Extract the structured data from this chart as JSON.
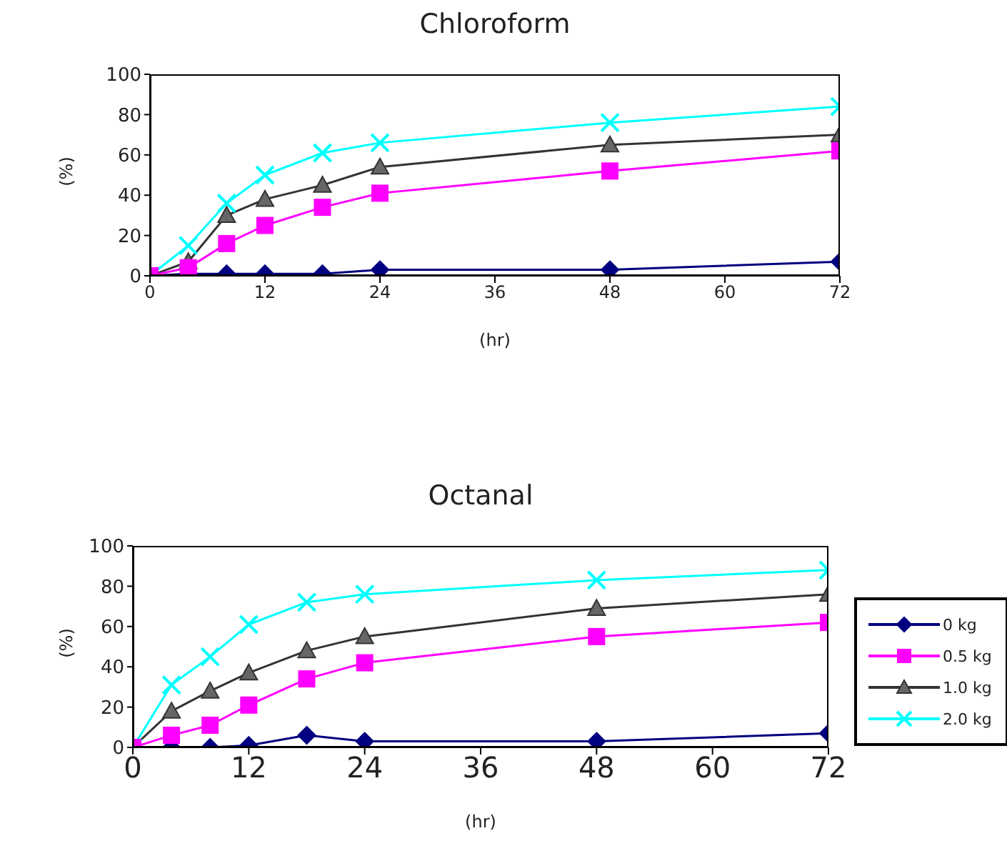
{
  "chart_data": [
    {
      "type": "line",
      "title": "Chloroform",
      "xlabel": "(hr)",
      "ylabel": "(%)",
      "x": [
        0,
        4,
        8,
        12,
        18,
        24,
        48,
        72
      ],
      "xlim": [
        0,
        72
      ],
      "xticks": [
        0,
        12,
        24,
        36,
        48,
        60,
        72
      ],
      "ylim": [
        0,
        100
      ],
      "yticks": [
        0,
        20,
        40,
        60,
        80,
        100
      ],
      "grid": false,
      "legend": false,
      "series": [
        {
          "color": "#000080",
          "marker": "diamond",
          "values": [
            0,
            1,
            1,
            1,
            1,
            3,
            3,
            7
          ]
        },
        {
          "color": "#ff00ff",
          "marker": "square",
          "values": [
            0,
            4,
            16,
            25,
            34,
            41,
            52,
            62
          ]
        },
        {
          "color": "#333333",
          "marker": "triangle",
          "values": [
            0,
            7,
            30,
            38,
            45,
            54,
            65,
            70
          ]
        },
        {
          "color": "#00ffff",
          "marker": "cross",
          "values": [
            0,
            15,
            36,
            50,
            61,
            66,
            76,
            84
          ]
        }
      ]
    },
    {
      "type": "line",
      "title": "Octanal",
      "xlabel": "(hr)",
      "ylabel": "(%)",
      "x": [
        0,
        4,
        8,
        12,
        18,
        24,
        48,
        72
      ],
      "xlim": [
        0,
        72
      ],
      "xticks": [
        0,
        12,
        24,
        36,
        48,
        60,
        72
      ],
      "ylim": [
        0,
        100
      ],
      "yticks": [
        0,
        20,
        40,
        60,
        80,
        100
      ],
      "grid": false,
      "legend": "right",
      "series": [
        {
          "name": "0 kg",
          "color": "#000080",
          "marker": "diamond",
          "values": [
            0,
            0,
            0,
            1,
            6,
            3,
            3,
            7
          ]
        },
        {
          "name": "0.5 kg",
          "color": "#ff00ff",
          "marker": "square",
          "values": [
            0,
            6,
            11,
            21,
            34,
            42,
            55,
            62
          ]
        },
        {
          "name": "1.0 kg",
          "color": "#333333",
          "marker": "triangle",
          "values": [
            0,
            18,
            28,
            37,
            48,
            55,
            69,
            76
          ]
        },
        {
          "name": "2.0 kg",
          "color": "#00ffff",
          "marker": "cross",
          "values": [
            0,
            31,
            45,
            61,
            72,
            76,
            83,
            88
          ]
        }
      ]
    }
  ]
}
